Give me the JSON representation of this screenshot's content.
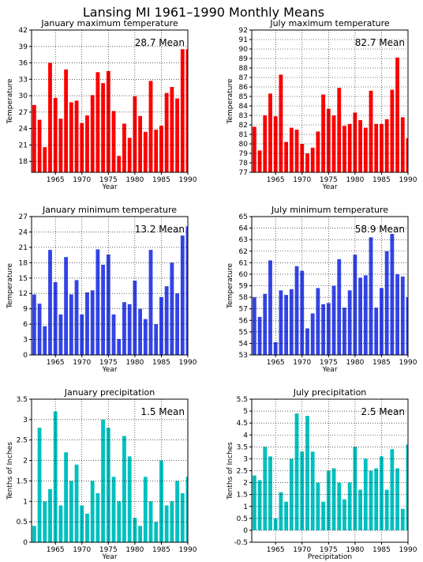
{
  "title": "Lansing MI  1961–1990 Monthly Means",
  "chart_data": [
    {
      "type": "bar",
      "title": "January maximum temperature",
      "xlabel": "Year",
      "ylabel": "Temperature",
      "mean_label": "28.7  Mean",
      "color": "#ff0000",
      "x": [
        1961,
        1962,
        1963,
        1964,
        1965,
        1966,
        1967,
        1968,
        1969,
        1970,
        1971,
        1972,
        1973,
        1974,
        1975,
        1976,
        1977,
        1978,
        1979,
        1980,
        1981,
        1982,
        1983,
        1984,
        1985,
        1986,
        1987,
        1988,
        1989,
        1990
      ],
      "values": [
        28.3,
        25.6,
        20.6,
        36.0,
        29.6,
        25.8,
        34.8,
        28.8,
        29.1,
        25.0,
        26.4,
        30.1,
        34.3,
        32.3,
        34.5,
        27.2,
        19.0,
        24.9,
        22.3,
        29.9,
        26.3,
        23.4,
        32.7,
        23.8,
        24.5,
        30.5,
        31.6,
        29.5,
        38.5,
        38.5
      ],
      "ylim": [
        16,
        42
      ],
      "yticks": [
        18,
        21,
        24,
        27,
        30,
        33,
        36,
        39,
        42
      ],
      "xticks": [
        1965,
        1970,
        1975,
        1980,
        1985,
        1990
      ],
      "xlim": [
        1960.5,
        1990
      ]
    },
    {
      "type": "bar",
      "title": "July maximum temperature",
      "xlabel": "Year",
      "ylabel": "Temperature",
      "mean_label": "82.7  Mean",
      "color": "#ff0000",
      "x": [
        1961,
        1962,
        1963,
        1964,
        1965,
        1966,
        1967,
        1968,
        1969,
        1970,
        1971,
        1972,
        1973,
        1974,
        1975,
        1976,
        1977,
        1978,
        1979,
        1980,
        1981,
        1982,
        1983,
        1984,
        1985,
        1986,
        1987,
        1988,
        1989,
        1990
      ],
      "values": [
        81.8,
        79.3,
        83.0,
        85.3,
        82.9,
        87.3,
        80.2,
        81.7,
        81.5,
        80.0,
        79.0,
        79.6,
        81.3,
        85.2,
        83.7,
        83.0,
        85.9,
        81.9,
        82.1,
        83.3,
        82.5,
        81.7,
        85.6,
        82.1,
        82.1,
        82.6,
        85.7,
        89.1,
        82.8,
        80.6
      ],
      "ylim": [
        77,
        92
      ],
      "yticks": [
        77,
        78,
        79,
        80,
        81,
        82,
        83,
        84,
        85,
        86,
        87,
        88,
        89,
        90,
        91,
        92
      ],
      "xticks": [
        1965,
        1970,
        1975,
        1980,
        1985,
        1990
      ],
      "xlim": [
        1960.5,
        1990
      ]
    },
    {
      "type": "bar",
      "title": "January minimum temperature",
      "xlabel": "Year",
      "ylabel": "Temperature",
      "mean_label": "13.2  Mean",
      "color": "#3344e6",
      "x": [
        1961,
        1962,
        1963,
        1964,
        1965,
        1966,
        1967,
        1968,
        1969,
        1970,
        1971,
        1972,
        1973,
        1974,
        1975,
        1976,
        1977,
        1978,
        1979,
        1980,
        1981,
        1982,
        1983,
        1984,
        1985,
        1986,
        1987,
        1988,
        1989,
        1990
      ],
      "values": [
        11.8,
        10.0,
        5.6,
        20.5,
        14.2,
        7.9,
        19.1,
        11.8,
        14.6,
        7.9,
        12.2,
        12.6,
        20.6,
        17.6,
        19.6,
        7.9,
        3.1,
        10.3,
        9.9,
        14.5,
        9.0,
        7.0,
        20.5,
        6.0,
        11.3,
        13.4,
        18.0,
        12.0,
        23.3,
        25.1
      ],
      "ylim": [
        0,
        27
      ],
      "yticks": [
        0,
        3,
        6,
        9,
        12,
        15,
        18,
        21,
        24,
        27
      ],
      "xticks": [
        1965,
        1970,
        1975,
        1980,
        1985,
        1990
      ],
      "xlim": [
        1960.5,
        1990
      ]
    },
    {
      "type": "bar",
      "title": "July minimum temperature",
      "xlabel": "Year",
      "ylabel": "Temperature",
      "mean_label": "58.9  Mean",
      "color": "#3344e6",
      "x": [
        1961,
        1962,
        1963,
        1964,
        1965,
        1966,
        1967,
        1968,
        1969,
        1970,
        1971,
        1972,
        1973,
        1974,
        1975,
        1976,
        1977,
        1978,
        1979,
        1980,
        1981,
        1982,
        1983,
        1984,
        1985,
        1986,
        1987,
        1988,
        1989,
        1990
      ],
      "values": [
        58.0,
        56.3,
        58.3,
        61.2,
        54.1,
        58.6,
        58.2,
        58.7,
        60.7,
        60.3,
        55.3,
        56.6,
        58.8,
        57.4,
        57.5,
        59.0,
        61.3,
        57.1,
        58.6,
        61.7,
        59.7,
        59.9,
        63.2,
        57.1,
        58.8,
        62.0,
        63.5,
        60.0,
        59.8,
        58.0
      ],
      "ylim": [
        53,
        65
      ],
      "yticks": [
        53,
        54,
        55,
        56,
        57,
        58,
        59,
        60,
        61,
        62,
        63,
        64,
        65
      ],
      "xticks": [
        1965,
        1970,
        1975,
        1980,
        1985,
        1990
      ],
      "xlim": [
        1960.5,
        1990
      ]
    },
    {
      "type": "bar",
      "title": "January precipitation",
      "xlabel": "Year",
      "ylabel": "Tenths of Inches",
      "mean_label": "1.5  Mean",
      "color": "#00c0c0",
      "x": [
        1961,
        1962,
        1963,
        1964,
        1965,
        1966,
        1967,
        1968,
        1969,
        1970,
        1971,
        1972,
        1973,
        1974,
        1975,
        1976,
        1977,
        1978,
        1979,
        1980,
        1981,
        1982,
        1983,
        1984,
        1985,
        1986,
        1987,
        1988,
        1989,
        1990
      ],
      "values": [
        0.4,
        2.8,
        1.0,
        1.3,
        3.2,
        0.9,
        2.2,
        1.5,
        1.9,
        0.9,
        0.7,
        1.5,
        1.2,
        3.0,
        2.8,
        1.6,
        1.0,
        2.6,
        2.1,
        0.6,
        0.4,
        1.6,
        1.0,
        0.5,
        2.0,
        0.9,
        1.0,
        1.5,
        1.2,
        1.6
      ],
      "ylim": [
        0,
        3.5
      ],
      "yticks": [
        0,
        0.5,
        1,
        1.5,
        2,
        2.5,
        3,
        3.5
      ],
      "xticks": [
        1965,
        1970,
        1975,
        1980,
        1985,
        1990
      ],
      "xlim": [
        1960.5,
        1990
      ]
    },
    {
      "type": "bar",
      "title": "July precipitation",
      "xlabel": "Precipitation",
      "ylabel": "Tenths of Inches",
      "mean_label": "2.5  Mean",
      "color": "#00c0c0",
      "x": [
        1961,
        1962,
        1963,
        1964,
        1965,
        1966,
        1967,
        1968,
        1969,
        1970,
        1971,
        1972,
        1973,
        1974,
        1975,
        1976,
        1977,
        1978,
        1979,
        1980,
        1981,
        1982,
        1983,
        1984,
        1985,
        1986,
        1987,
        1988,
        1989,
        1990
      ],
      "values": [
        2.3,
        2.1,
        3.5,
        3.1,
        0.5,
        1.6,
        1.2,
        3.0,
        4.9,
        3.3,
        4.8,
        3.3,
        2.0,
        1.2,
        2.5,
        2.6,
        2.0,
        1.3,
        2.0,
        3.5,
        1.7,
        3.0,
        2.5,
        2.6,
        3.1,
        1.7,
        3.4,
        2.6,
        0.9,
        3.6
      ],
      "ylim": [
        -0.5,
        5.5
      ],
      "yticks": [
        -0.5,
        0,
        0.5,
        1,
        1.5,
        2,
        2.5,
        3,
        3.5,
        4,
        4.5,
        5,
        5.5
      ],
      "xticks": [
        1965,
        1970,
        1975,
        1980,
        1985,
        1990
      ],
      "xlim": [
        1960.5,
        1990
      ]
    }
  ]
}
